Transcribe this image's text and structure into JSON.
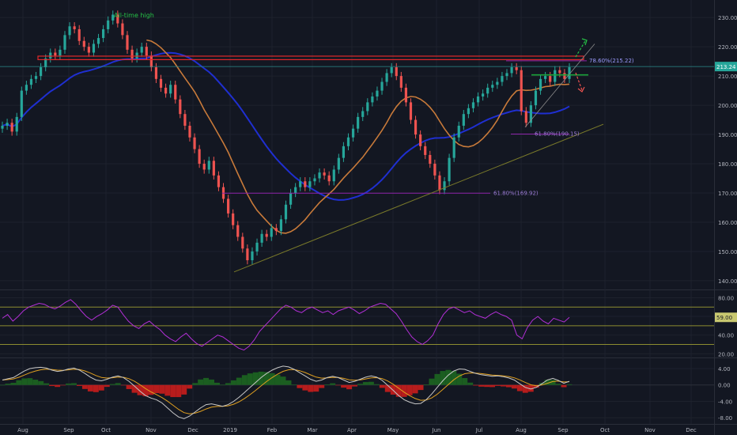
{
  "chart_data": {
    "type": "candlestick",
    "title": "",
    "panes": [
      {
        "name": "price",
        "ylim": [
          137,
          236
        ],
        "y_ticks": [
          "230.00",
          "220.00",
          "210.00",
          "200.00",
          "190.00",
          "180.00",
          "170.00",
          "160.00",
          "150.00",
          "140.00"
        ],
        "y_tick_values": [
          230,
          220,
          210,
          200,
          190,
          180,
          170,
          160,
          150,
          140
        ],
        "last_price_label": "213.24",
        "last_price": 213.24,
        "annotations": {
          "ath": "All-time high",
          "fib_786": "78.60%(215.22)",
          "fib_618a": "61.80%(190.15)",
          "fib_618b": "61.80%(169.92)"
        },
        "levels": {
          "resistance": [
            215.6,
            216.8
          ],
          "fib_786": 215.22,
          "fib_618a": 190.15,
          "fib_618b": 169.92,
          "last": 213.24
        },
        "candles_close": [
          193,
          194,
          191,
          196,
          205,
          207,
          209,
          210,
          213,
          216,
          218,
          217,
          219,
          224,
          227,
          226,
          222,
          220,
          218,
          221,
          223,
          226,
          229,
          231,
          228,
          224,
          219,
          216,
          218,
          220,
          217,
          213,
          209,
          206,
          204,
          207,
          202,
          197,
          193,
          189,
          185,
          180,
          178,
          181,
          176,
          172,
          168,
          163,
          159,
          155,
          151,
          147,
          150,
          153,
          156,
          155,
          158,
          157,
          161,
          166,
          170,
          172,
          174,
          172,
          174,
          175,
          177,
          176,
          174,
          178,
          182,
          186,
          189,
          192,
          196,
          198,
          201,
          203,
          205,
          208,
          211,
          213,
          210,
          206,
          201,
          195,
          190,
          186,
          183,
          180,
          176,
          171,
          174,
          182,
          189,
          193,
          197,
          199,
          201,
          203,
          204,
          206,
          207,
          208,
          210,
          211,
          213,
          212,
          198,
          194,
          200,
          205,
          209,
          210,
          208,
          212,
          211,
          209,
          213
        ]
      },
      {
        "name": "rsi",
        "ylim": [
          16,
          88
        ],
        "y_ticks": [
          "80.00",
          "60.00",
          "40.00",
          "20.00"
        ],
        "y_tick_values": [
          80,
          60,
          40,
          20
        ],
        "bands": [
          70,
          50,
          30
        ],
        "current_label": "59.00",
        "current": 59,
        "values": [
          58,
          62,
          55,
          60,
          66,
          70,
          72,
          74,
          73,
          70,
          68,
          71,
          75,
          78,
          73,
          66,
          60,
          56,
          60,
          63,
          67,
          72,
          70,
          62,
          55,
          50,
          47,
          52,
          55,
          50,
          46,
          40,
          36,
          33,
          38,
          42,
          36,
          31,
          28,
          32,
          36,
          40,
          38,
          34,
          30,
          26,
          24,
          28,
          35,
          44,
          50,
          56,
          62,
          68,
          72,
          70,
          66,
          64,
          68,
          70,
          67,
          64,
          66,
          62,
          66,
          68,
          70,
          67,
          63,
          66,
          70,
          72,
          74,
          73,
          68,
          63,
          55,
          46,
          38,
          33,
          30,
          34,
          40,
          52,
          62,
          68,
          70,
          67,
          64,
          66,
          62,
          60,
          58,
          62,
          65,
          62,
          60,
          56,
          40,
          36,
          48,
          56,
          60,
          55,
          52,
          58,
          56,
          54,
          59
        ]
      },
      {
        "name": "macd",
        "ylim": [
          -9.5,
          6.5
        ],
        "y_ticks": [
          "4.00",
          "0.00",
          "-4.00",
          "-8.00"
        ],
        "y_tick_values": [
          4,
          0,
          -4,
          -8
        ],
        "current_label": "",
        "macd": [
          1.2,
          1.5,
          1.8,
          2.6,
          3.4,
          4.0,
          4.2,
          4.3,
          4.1,
          3.6,
          3.3,
          3.5,
          3.9,
          4.1,
          3.6,
          2.8,
          1.9,
          1.2,
          1.0,
          1.4,
          1.9,
          2.2,
          1.8,
          0.9,
          -0.3,
          -1.5,
          -2.6,
          -3.2,
          -3.6,
          -4.4,
          -5.6,
          -6.8,
          -7.8,
          -8.2,
          -7.6,
          -6.6,
          -5.6,
          -4.8,
          -4.6,
          -4.9,
          -5.2,
          -4.8,
          -4.0,
          -3.0,
          -1.8,
          -0.6,
          0.6,
          1.8,
          2.8,
          3.6,
          4.2,
          4.6,
          4.4,
          3.8,
          3.0,
          2.2,
          1.4,
          0.9,
          1.2,
          1.8,
          2.1,
          1.8,
          1.2,
          0.6,
          0.9,
          1.4,
          1.9,
          2.2,
          1.9,
          1.1,
          -0.1,
          -1.3,
          -2.6,
          -3.6,
          -4.2,
          -4.6,
          -4.5,
          -3.6,
          -2.2,
          -0.6,
          1.0,
          2.4,
          3.4,
          3.9,
          3.8,
          3.3,
          2.8,
          2.5,
          2.3,
          2.1,
          2.2,
          2.0,
          1.7,
          1.2,
          0.3,
          -0.6,
          -1.0,
          -0.6,
          0.3,
          1.2,
          1.6,
          1.1,
          0.4,
          0.9
        ]
      }
    ],
    "x_ticks": [
      "Aug",
      "Sep",
      "Oct",
      "Nov",
      "Dec",
      "2019",
      "Feb",
      "Mar",
      "Apr",
      "May",
      "Jun",
      "Jul",
      "Aug",
      "Sep",
      "Oct",
      "Nov",
      "Dec"
    ],
    "colors": {
      "background": "#131722",
      "up": "#26a69a",
      "down": "#ef5350",
      "ma200": "#1f2fd1",
      "ma50": "#c87a3a",
      "rsi": "#b22fd6",
      "rsi_band": "#8d8d30",
      "fib": "#8e24aa",
      "trend": "#7a7a2a",
      "resistance": "#e0282a",
      "support": "#1aa33a",
      "macd": "#c7c7c7",
      "signal": "#e0a020",
      "hist_up": "#1b5e20",
      "hist_down": "#b71c1c"
    }
  }
}
